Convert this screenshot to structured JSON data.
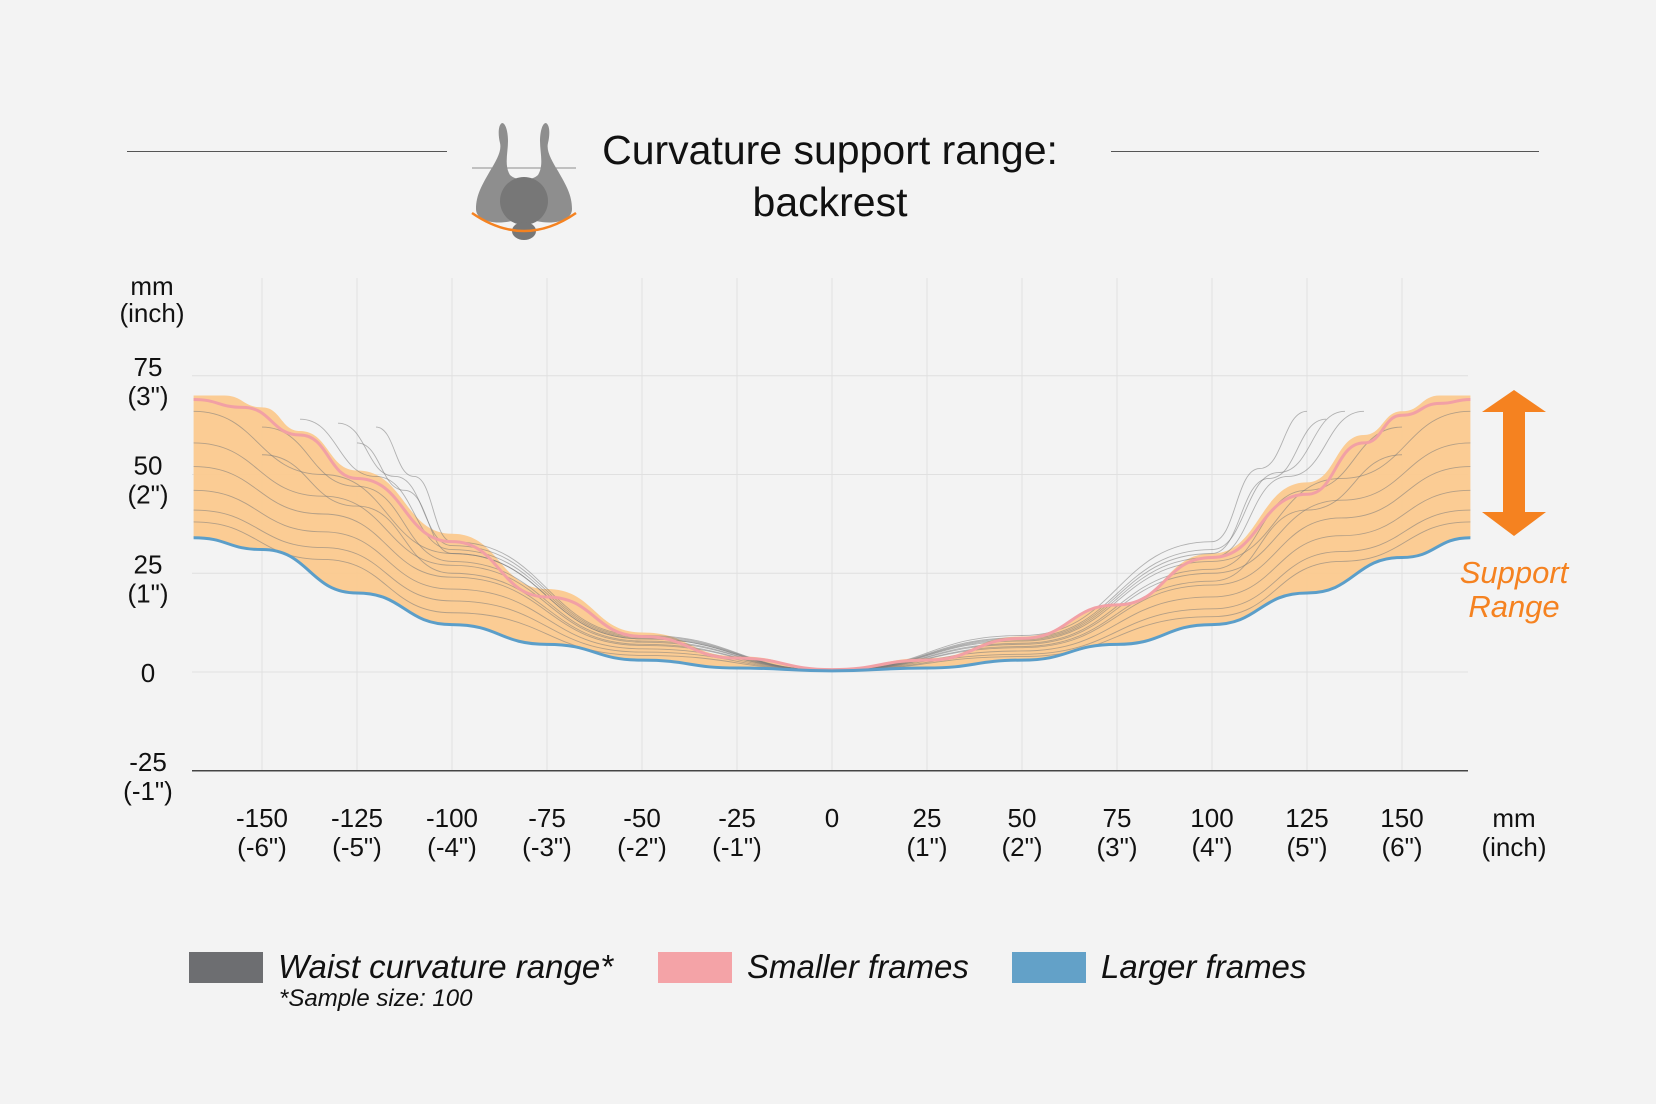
{
  "title": {
    "line1": "Curvature support range:",
    "line2": "backrest"
  },
  "colors": {
    "background": "#f3f3f3",
    "band_fill": "#fbc98e",
    "waist_lines": "#7a7a7a",
    "smaller_frames": "#f2a0a5",
    "larger_frames": "#5b9ec9",
    "accent": "#f58220",
    "icon": "#8e8e8e"
  },
  "icon": {
    "name": "person-top-view-icon"
  },
  "support_range": {
    "line1": "Support",
    "line2": "Range",
    "icon": "double-arrow-vertical-icon"
  },
  "legend": {
    "items": [
      {
        "label": "Waist curvature range*",
        "color": "#6d6e71"
      },
      {
        "label": "Smaller frames",
        "color": "#f4a3a7"
      },
      {
        "label": "Larger frames",
        "color": "#63a1c8"
      }
    ],
    "note": "*Sample size: 100"
  },
  "chart_data": {
    "type": "line",
    "title": "Curvature support range: backrest",
    "x_unit_label": [
      "mm",
      "(inch)"
    ],
    "y_unit_label": [
      "mm",
      "(inch)"
    ],
    "xlim": [
      -168,
      168
    ],
    "ylim": [
      -25,
      85
    ],
    "grid": true,
    "x_ticks": [
      {
        "value": -150,
        "mm": "-150",
        "inch": "(-6\")"
      },
      {
        "value": -125,
        "mm": "-125",
        "inch": "(-5\")"
      },
      {
        "value": -100,
        "mm": "-100",
        "inch": "(-4\")"
      },
      {
        "value": -75,
        "mm": "-75",
        "inch": "(-3\")"
      },
      {
        "value": -50,
        "mm": "-50",
        "inch": "(-2\")"
      },
      {
        "value": -25,
        "mm": "-25",
        "inch": "(-1\")"
      },
      {
        "value": 0,
        "mm": "0",
        "inch": ""
      },
      {
        "value": 25,
        "mm": "25",
        "inch": "(1\")"
      },
      {
        "value": 50,
        "mm": "50",
        "inch": "(2\")"
      },
      {
        "value": 75,
        "mm": "75",
        "inch": "(3\")"
      },
      {
        "value": 100,
        "mm": "100",
        "inch": "(4\")"
      },
      {
        "value": 125,
        "mm": "125",
        "inch": "(5\")"
      },
      {
        "value": 150,
        "mm": "150",
        "inch": "(6\")"
      }
    ],
    "y_ticks": [
      {
        "value": 75,
        "mm": "75",
        "inch": "(3\")"
      },
      {
        "value": 50,
        "mm": "50",
        "inch": "(2\")"
      },
      {
        "value": 25,
        "mm": "25",
        "inch": "(1\")"
      },
      {
        "value": 0,
        "mm": "0",
        "inch": ""
      },
      {
        "value": -25,
        "mm": "-25",
        "inch": "(-1\")"
      }
    ],
    "band": {
      "name": "Support range",
      "upper": [
        [
          -168,
          70
        ],
        [
          -160,
          70
        ],
        [
          -150,
          67
        ],
        [
          -140,
          61
        ],
        [
          -125,
          51
        ],
        [
          -100,
          35
        ],
        [
          -75,
          21
        ],
        [
          -50,
          10
        ],
        [
          -25,
          4
        ],
        [
          0,
          0.6
        ],
        [
          25,
          3.5
        ],
        [
          50,
          9
        ],
        [
          75,
          17
        ],
        [
          100,
          30
        ],
        [
          125,
          48
        ],
        [
          140,
          60
        ],
        [
          150,
          66
        ],
        [
          160,
          70
        ],
        [
          168,
          70
        ]
      ],
      "lower": [
        [
          -168,
          34
        ],
        [
          -150,
          31
        ],
        [
          -125,
          20
        ],
        [
          -100,
          12
        ],
        [
          -75,
          7
        ],
        [
          -50,
          3
        ],
        [
          -25,
          1
        ],
        [
          0,
          0.3
        ],
        [
          25,
          1
        ],
        [
          50,
          3
        ],
        [
          75,
          7
        ],
        [
          100,
          12
        ],
        [
          125,
          20
        ],
        [
          150,
          29
        ],
        [
          168,
          34
        ]
      ]
    },
    "series": [
      {
        "name": "Smaller frames",
        "points": [
          [
            -168,
            69
          ],
          [
            -155,
            67
          ],
          [
            -140,
            60
          ],
          [
            -125,
            49
          ],
          [
            -100,
            33
          ],
          [
            -75,
            19
          ],
          [
            -50,
            9
          ],
          [
            -25,
            3.5
          ],
          [
            0,
            0.6
          ],
          [
            25,
            3
          ],
          [
            50,
            8.5
          ],
          [
            75,
            17
          ],
          [
            100,
            29
          ],
          [
            125,
            45
          ],
          [
            140,
            58
          ],
          [
            150,
            65
          ],
          [
            160,
            68
          ],
          [
            168,
            69
          ]
        ]
      },
      {
        "name": "Larger frames",
        "points": [
          [
            -168,
            34
          ],
          [
            -150,
            31
          ],
          [
            -125,
            20
          ],
          [
            -100,
            12
          ],
          [
            -75,
            7
          ],
          [
            -50,
            3
          ],
          [
            -25,
            1
          ],
          [
            0,
            0.3
          ],
          [
            25,
            1
          ],
          [
            50,
            3
          ],
          [
            75,
            7
          ],
          [
            100,
            12
          ],
          [
            125,
            20
          ],
          [
            150,
            29
          ],
          [
            168,
            34
          ]
        ]
      },
      {
        "name": "Waist curvature range*",
        "description_count": 100,
        "curves": [
          {
            "side": "left",
            "x_start": -168,
            "y_start": 66,
            "x_mid": -100,
            "y_mid": 30
          },
          {
            "side": "left",
            "x_start": -168,
            "y_start": 58,
            "x_mid": -100,
            "y_mid": 27
          },
          {
            "side": "left",
            "x_start": -168,
            "y_start": 52,
            "x_mid": -100,
            "y_mid": 24
          },
          {
            "side": "left",
            "x_start": -168,
            "y_start": 46,
            "x_mid": -100,
            "y_mid": 21
          },
          {
            "side": "left",
            "x_start": -168,
            "y_start": 41,
            "x_mid": -100,
            "y_mid": 18
          },
          {
            "side": "left",
            "x_start": -168,
            "y_start": 38,
            "x_mid": -100,
            "y_mid": 15
          },
          {
            "side": "left",
            "x_start": -150,
            "y_start": 62,
            "x_mid": -100,
            "y_mid": 28
          },
          {
            "side": "left",
            "x_start": -150,
            "y_start": 55,
            "x_mid": -100,
            "y_mid": 25
          },
          {
            "side": "left",
            "x_start": -140,
            "y_start": 64,
            "x_mid": -100,
            "y_mid": 31
          },
          {
            "side": "left",
            "x_start": -130,
            "y_start": 63,
            "x_mid": -100,
            "y_mid": 32
          },
          {
            "side": "left",
            "x_start": -125,
            "y_start": 58,
            "x_mid": -100,
            "y_mid": 30
          },
          {
            "side": "left",
            "x_start": -120,
            "y_start": 62,
            "x_mid": -100,
            "y_mid": 33
          },
          {
            "side": "right",
            "x_start": 168,
            "y_start": 66,
            "x_mid": 100,
            "y_mid": 28
          },
          {
            "side": "right",
            "x_start": 168,
            "y_start": 58,
            "x_mid": 100,
            "y_mid": 25
          },
          {
            "side": "right",
            "x_start": 168,
            "y_start": 52,
            "x_mid": 100,
            "y_mid": 22
          },
          {
            "side": "right",
            "x_start": 168,
            "y_start": 46,
            "x_mid": 100,
            "y_mid": 19
          },
          {
            "side": "right",
            "x_start": 168,
            "y_start": 41,
            "x_mid": 100,
            "y_mid": 16
          },
          {
            "side": "right",
            "x_start": 168,
            "y_start": 38,
            "x_mid": 100,
            "y_mid": 14
          },
          {
            "side": "right",
            "x_start": 150,
            "y_start": 62,
            "x_mid": 100,
            "y_mid": 26
          },
          {
            "side": "right",
            "x_start": 150,
            "y_start": 55,
            "x_mid": 100,
            "y_mid": 23
          },
          {
            "side": "right",
            "x_start": 140,
            "y_start": 66,
            "x_mid": 100,
            "y_mid": 29
          },
          {
            "side": "right",
            "x_start": 135,
            "y_start": 66,
            "x_mid": 100,
            "y_mid": 31
          },
          {
            "side": "right",
            "x_start": 130,
            "y_start": 64,
            "x_mid": 100,
            "y_mid": 30
          },
          {
            "side": "right",
            "x_start": 125,
            "y_start": 66,
            "x_mid": 100,
            "y_mid": 33
          }
        ]
      }
    ]
  }
}
